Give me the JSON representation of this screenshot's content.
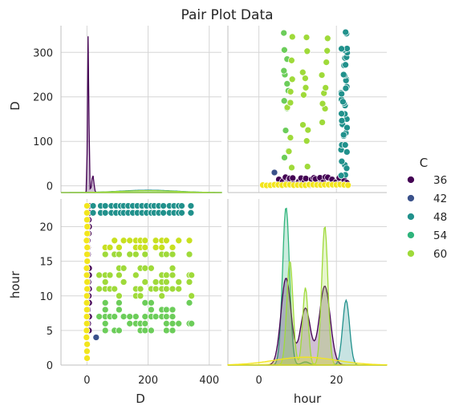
{
  "chart_data": {
    "type": "scatter",
    "title": "Pair Plot Data",
    "variables": [
      "D",
      "hour"
    ],
    "hue": "C",
    "legend": {
      "title": "C",
      "placement": "right",
      "entries": [
        {
          "label": "36",
          "color": "#440154"
        },
        {
          "label": "42",
          "color": "#3b528b"
        },
        {
          "label": "48",
          "color": "#21918c"
        },
        {
          "label": "54",
          "color": "#2fb47c"
        },
        {
          "label": "60",
          "color": "#9fda3a"
        }
      ]
    },
    "hue_extra_color": "#f2e51d",
    "grid": true,
    "axes": {
      "D": {
        "label": "D",
        "range": [
          -85,
          440
        ],
        "ticks": [
          0,
          200,
          400
        ],
        "tick_labels": [
          "0",
          "200",
          "400"
        ],
        "row_range": [
          -15,
          360
        ],
        "row_ticks": [
          0,
          100,
          200,
          300
        ],
        "row_tick_labels": [
          "0",
          "100",
          "200",
          "300"
        ]
      },
      "hour": {
        "label": "hour",
        "range": [
          -8,
          33
        ],
        "ticks": [
          0,
          20
        ],
        "tick_labels": [
          "0",
          "20"
        ],
        "row_range": [
          0,
          24
        ],
        "row_ticks": [
          0,
          5,
          10,
          15,
          20
        ],
        "row_tick_labels": [
          "0",
          "5",
          "10",
          "15",
          "20"
        ]
      }
    },
    "groups": [
      {
        "C": "36",
        "color": "#440154",
        "hours": [
          5,
          6,
          7,
          8,
          9,
          10,
          11,
          12,
          13,
          14,
          15,
          16,
          17,
          18,
          19,
          20,
          21,
          22,
          23
        ],
        "D_values": [
          2,
          4,
          6,
          8,
          10,
          12,
          15,
          18,
          20
        ]
      },
      {
        "C": "42",
        "color": "#3b528b",
        "hours": [
          4
        ],
        "D_values": [
          30
        ]
      },
      {
        "C": "48",
        "color": "#21918c",
        "hours": [
          22,
          23
        ],
        "D_values": [
          20,
          45,
          60,
          80,
          95,
          110,
          120,
          135,
          150,
          165,
          180,
          195,
          210,
          220,
          235,
          250,
          270,
          285,
          300,
          310,
          340
        ]
      },
      {
        "C": "54",
        "color": "#2fb47c",
        "hours": [],
        "D_values": []
      },
      {
        "C": "60",
        "color": "#9fda3a",
        "hours": [
          5,
          6,
          7,
          8,
          9,
          10,
          11,
          12,
          13,
          14,
          16,
          17,
          18
        ],
        "D_values": [
          40,
          60,
          75,
          90,
          105,
          120,
          140,
          160,
          175,
          190,
          210,
          225,
          245,
          260,
          280,
          300,
          335,
          342
        ]
      },
      {
        "C": "yellow",
        "color": "#f2e51d",
        "hours": [
          1,
          2,
          3,
          4,
          5,
          6,
          7,
          8,
          9,
          10,
          11,
          12,
          13,
          14,
          15,
          16,
          17,
          18,
          19,
          20,
          21,
          22,
          23
        ],
        "D_values": [
          0,
          1,
          2,
          3
        ]
      }
    ],
    "D_distribution_peaks": [
      {
        "D": 5,
        "density_rel": 1.0,
        "color": "#440154"
      },
      {
        "D": 20,
        "density_rel": 0.1,
        "color": "#440154"
      }
    ],
    "hour_distribution_peaks": [
      {
        "hour": 7,
        "density_rel": 1.0,
        "color": "#2fb47c"
      },
      {
        "hour": 7,
        "density_rel": 0.74,
        "color": "#440154"
      },
      {
        "hour": 8,
        "density_rel": 0.68,
        "color": "#9fda3a"
      },
      {
        "hour": 12,
        "density_rel": 0.53,
        "color": "#9fda3a"
      },
      {
        "hour": 17,
        "density_rel": 0.9,
        "color": "#9fda3a"
      },
      {
        "hour": 17,
        "density_rel": 0.5,
        "color": "#440154"
      },
      {
        "hour": 22,
        "density_rel": 0.41,
        "color": "#21918c"
      }
    ]
  }
}
